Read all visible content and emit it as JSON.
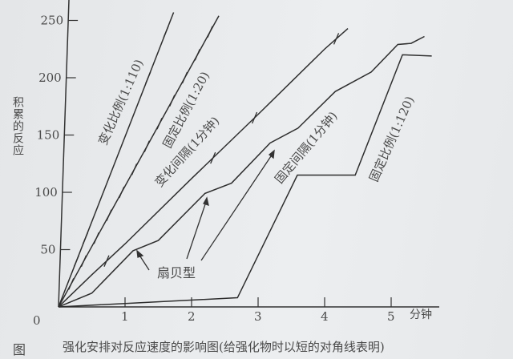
{
  "chart_data": {
    "type": "line",
    "ylabel": "积累的反应",
    "xlabel": "",
    "x_unit": "分钟",
    "xlim": [
      0,
      5.7
    ],
    "ylim": [
      0,
      265
    ],
    "x_ticks": [
      1,
      2,
      3,
      4,
      5
    ],
    "x_tick_labels": [
      "1",
      "2",
      "3",
      "4",
      "5"
    ],
    "y_ticks": [
      50,
      100,
      150,
      200,
      250
    ],
    "y_tick_labels": [
      "50",
      "100",
      "150",
      "200",
      "250"
    ],
    "origin_label": "0",
    "grid": false,
    "caption_prefix": "图",
    "caption": "强化安排对反应速度的影响图(给强化物时以短的对角线表明)",
    "annotation": {
      "text": "扇贝型",
      "arrows_to_series": "固定间隔(1分钟)"
    },
    "series": [
      {
        "name": "变化比例(1:110)",
        "x": [
          0,
          1.73
        ],
        "y": [
          0,
          257
        ],
        "reinforcements_y": [
          40,
          60,
          200,
          240
        ]
      },
      {
        "name": "固定比例(1:20)",
        "x": [
          0,
          2.41
        ],
        "y": [
          0,
          254
        ],
        "reinforcements_y": [
          20,
          40,
          60,
          80,
          100,
          120,
          140,
          160,
          180,
          200,
          220,
          240
        ]
      },
      {
        "name": "变化间隔(1分钟)",
        "x": [
          0,
          0.5,
          1,
          2,
          3,
          4,
          4.35
        ],
        "y": [
          0,
          28,
          55,
          112,
          168,
          225,
          243
        ],
        "reinforcements_y": [
          40,
          130,
          165,
          234
        ]
      },
      {
        "name": "固定间隔(1分钟)",
        "x": [
          0,
          0.5,
          1.12,
          1.5,
          2.2,
          2.6,
          3.18,
          3.6,
          4.16,
          4.7,
          5.1,
          5.3,
          5.5
        ],
        "y": [
          0,
          12,
          49,
          58,
          99,
          108,
          143,
          156,
          188,
          205,
          229,
          230,
          236
        ]
      },
      {
        "name": "固定比例(1:120)",
        "x": [
          0,
          2.69,
          3.59,
          4.46,
          5.17,
          5.61
        ],
        "y": [
          0,
          8,
          115,
          115,
          220,
          219
        ]
      }
    ]
  }
}
